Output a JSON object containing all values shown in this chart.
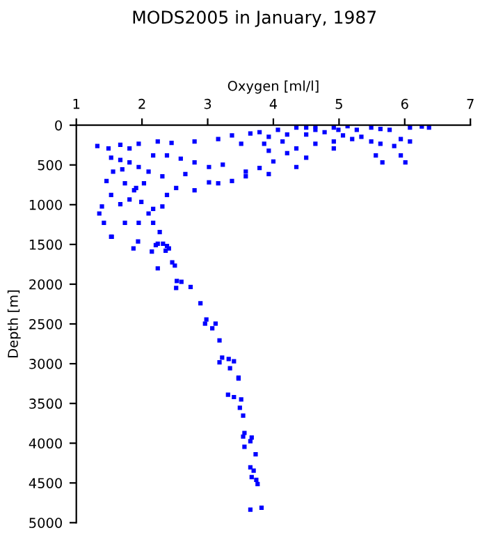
{
  "chart_data": {
    "type": "scatter",
    "title": "MODS2005 in January, 1987",
    "xlabel": "Oxygen [ml/l]",
    "ylabel": "Depth [m]",
    "xlim": [
      1,
      7
    ],
    "ylim": [
      5000,
      0
    ],
    "xticks": [
      1,
      2,
      3,
      4,
      5,
      6,
      7
    ],
    "yticks": [
      0,
      500,
      1000,
      1500,
      2000,
      2500,
      3000,
      3500,
      4000,
      4500,
      5000
    ],
    "marker": "square",
    "grid": false,
    "legend": false,
    "series": [
      {
        "color": "#0000ff",
        "x": [
          4.35,
          4.64,
          4.92,
          5.13,
          5.27,
          4.5,
          4.78,
          5.06,
          4.07,
          3.79,
          3.65,
          3.37,
          5.49,
          5.63,
          5.77,
          6.08,
          6.26,
          6.37,
          4.92,
          5.2,
          5.34,
          5.49,
          5.63,
          5.94,
          6.08,
          5.56,
          5.66,
          5.94,
          6.01,
          5.84,
          4.92,
          4.64,
          4.35,
          4.14,
          3.86,
          3.51,
          3.16,
          2.8,
          2.45,
          2.24,
          1.95,
          1.67,
          1.32,
          1.49,
          1.81,
          3.93,
          4.21,
          4.5,
          4.35,
          4.0,
          3.79,
          3.58,
          3.23,
          3.02,
          2.8,
          2.59,
          2.38,
          2.17,
          2.66,
          3.02,
          3.37,
          3.58,
          3.93,
          3.16,
          2.8,
          2.52,
          2.38,
          2.31,
          2.1,
          2.03,
          1.88,
          1.74,
          1.53,
          1.46,
          1.56,
          1.67,
          1.81,
          1.53,
          1.39,
          1.35,
          1.42,
          1.53,
          1.74,
          1.95,
          2.1,
          2.17,
          2.27,
          1.99,
          2.17,
          2.31,
          1.67,
          1.81,
          1.91,
          1.95,
          1.7,
          2.24,
          2.38,
          4.64,
          4.99,
          4.5,
          4.21,
          3.93,
          1.54,
          1.94,
          1.87,
          2.15,
          2.21,
          2.32,
          2.41,
          2.36,
          2.46,
          2.5,
          2.24,
          2.53,
          2.6,
          2.52,
          2.74,
          2.89,
          2.98,
          2.96,
          3.12,
          3.07,
          3.18,
          3.22,
          3.32,
          3.4,
          3.18,
          3.34,
          3.47,
          3.47,
          3.31,
          3.4,
          3.51,
          3.49,
          3.54,
          3.56,
          3.54,
          3.67,
          3.65,
          3.56,
          3.73,
          3.65,
          3.7,
          3.67,
          3.74,
          3.76,
          3.65,
          3.82
        ],
        "values": [
          29,
          12,
          29,
          12,
          58,
          117,
          88,
          129,
          58,
          88,
          105,
          129,
          29,
          47,
          58,
          29,
          18,
          29,
          205,
          175,
          146,
          205,
          234,
          175,
          205,
          380,
          468,
          380,
          468,
          263,
          292,
          234,
          292,
          205,
          234,
          234,
          175,
          205,
          222,
          205,
          234,
          246,
          263,
          292,
          292,
          321,
          351,
          409,
          526,
          456,
          538,
          585,
          497,
          526,
          468,
          421,
          380,
          380,
          614,
          719,
          702,
          643,
          614,
          731,
          819,
          790,
          877,
          643,
          585,
          731,
          819,
          731,
          877,
          702,
          585,
          438,
          468,
          409,
          1023,
          1111,
          1228,
          1403,
          1228,
          1228,
          1111,
          1228,
          1345,
          965,
          1052,
          1023,
          994,
          935,
          790,
          526,
          555,
          1491,
          1520,
          58,
          58,
          29,
          117,
          146,
          1404,
          1462,
          1550,
          1590,
          1508,
          1491,
          1550,
          1579,
          1725,
          1766,
          1801,
          1959,
          1970,
          2047,
          2035,
          2240,
          2444,
          2496,
          2496,
          2555,
          2707,
          2924,
          2942,
          2970,
          2982,
          3058,
          3175,
          3187,
          3391,
          3420,
          3450,
          3555,
          3654,
          3871,
          3917,
          3929,
          3976,
          4046,
          4139,
          4303,
          4345,
          4426,
          4461,
          4514,
          4836,
          4812
        ]
      }
    ]
  }
}
